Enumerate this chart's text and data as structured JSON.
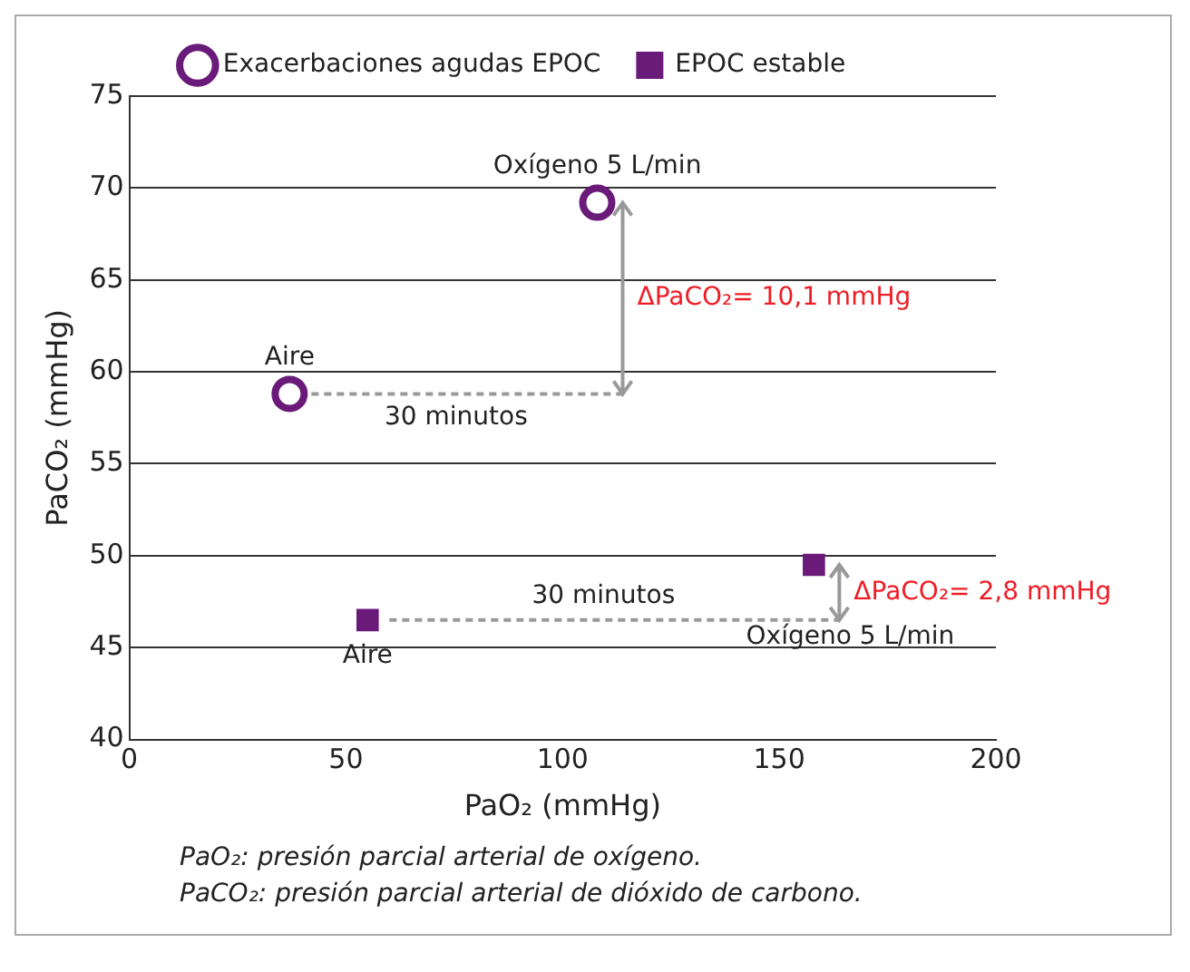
{
  "chart_data": {
    "type": "scatter",
    "xlabel": "PaO₂ (mmHg)",
    "ylabel": "PaCO₂ (mmHg)",
    "series": [
      {
        "name": "Exacerbaciones agudas EPOC",
        "color": "#6a1b7a",
        "marker": "circle",
        "x": [
          37,
          108
        ],
        "values": [
          58.8,
          69.2
        ]
      },
      {
        "name": "EPOC estable",
        "color": "#6a1b7a",
        "marker": "square",
        "x": [
          55,
          158
        ],
        "values": [
          46.5,
          49.5
        ]
      }
    ],
    "xlim": [
      0,
      200
    ],
    "xticks": [
      0,
      50,
      100,
      150,
      200
    ],
    "ylim": [
      40,
      75
    ],
    "yticks": [
      40,
      45,
      50,
      55,
      60,
      65,
      70,
      75
    ],
    "grid": "y",
    "legend": "top",
    "annotations": [
      {
        "text": "Aire",
        "x": 37,
        "y": 58.8
      },
      {
        "text": "Oxígeno 5 L/min",
        "x": 108,
        "y": 69.2
      },
      "30 minutos",
      "ΔPaCO₂= 10,1 mmHg",
      {
        "text": "Aire",
        "x": 55,
        "y": 46.5
      },
      "30 minutos",
      {
        "text": "Oxígeno 5 L/min",
        "x": 158,
        "y": 49.5
      },
      "ΔPaCO₂= 2,8 mmHg",
      "PaO₂: presión parcial arterial de oxígeno.",
      "PaCO₂: presión parcial arterial de dióxido de carbono."
    ]
  }
}
